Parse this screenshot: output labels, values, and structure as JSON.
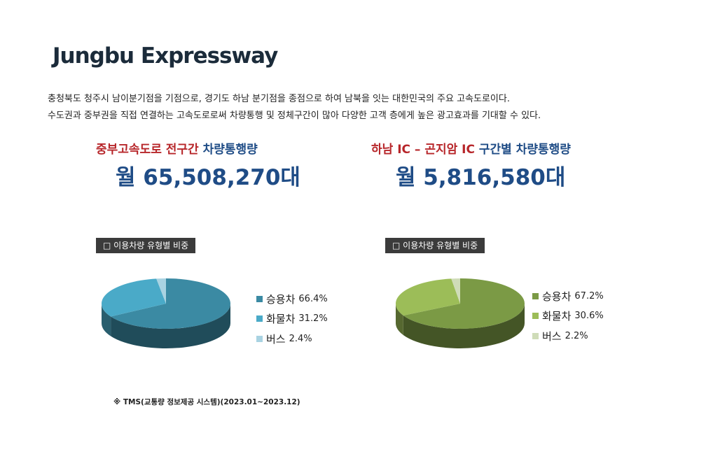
{
  "title": "Jungbu Expressway",
  "description": [
    "충청북도 청주시 남이분기점을 기점으로, 경기도 하남 분기점을 종점으로 하여 남북을 잇는 대한민국의 주요 고속도로이다.",
    "수도권과 중부권을 직접 연결하는 고속도로로써 차량통행 및 정체구간이 많아 다양한 고객 층에게 높은 광고효과를 기대할 수 있다."
  ],
  "stats": [
    {
      "label_red": "중부고속도로 전구간",
      "label_blue": "차량통행량",
      "value": "월 65,508,270대"
    },
    {
      "label_red": "하남 IC – 곤지암 IC",
      "label_blue": "구간별 차량통행량",
      "value": "월 5,816,580대"
    }
  ],
  "source": "※ TMS(교통량 정보제공 시스템)(2023.01~2023.12)",
  "chart_data": [
    {
      "type": "pie",
      "title": "□ 이용차량 유형별 비중",
      "categories": [
        "승용차",
        "화물차",
        "버스"
      ],
      "values": [
        66.4,
        31.2,
        2.4
      ],
      "labels": [
        "66.4%",
        "31.2%",
        "2.4%"
      ],
      "colors": [
        "#3b8aa3",
        "#4aaac8",
        "#a9d3e2"
      ],
      "legend": "right"
    },
    {
      "type": "pie",
      "title": "□ 이용차량 유형별 비중",
      "categories": [
        "승용차",
        "화물차",
        "버스"
      ],
      "values": [
        67.2,
        30.6,
        2.2
      ],
      "labels": [
        "67.2%",
        "30.6%",
        "2.2%"
      ],
      "colors": [
        "#7b9a45",
        "#9cbd58",
        "#cfdcb8"
      ],
      "legend": "right"
    }
  ]
}
